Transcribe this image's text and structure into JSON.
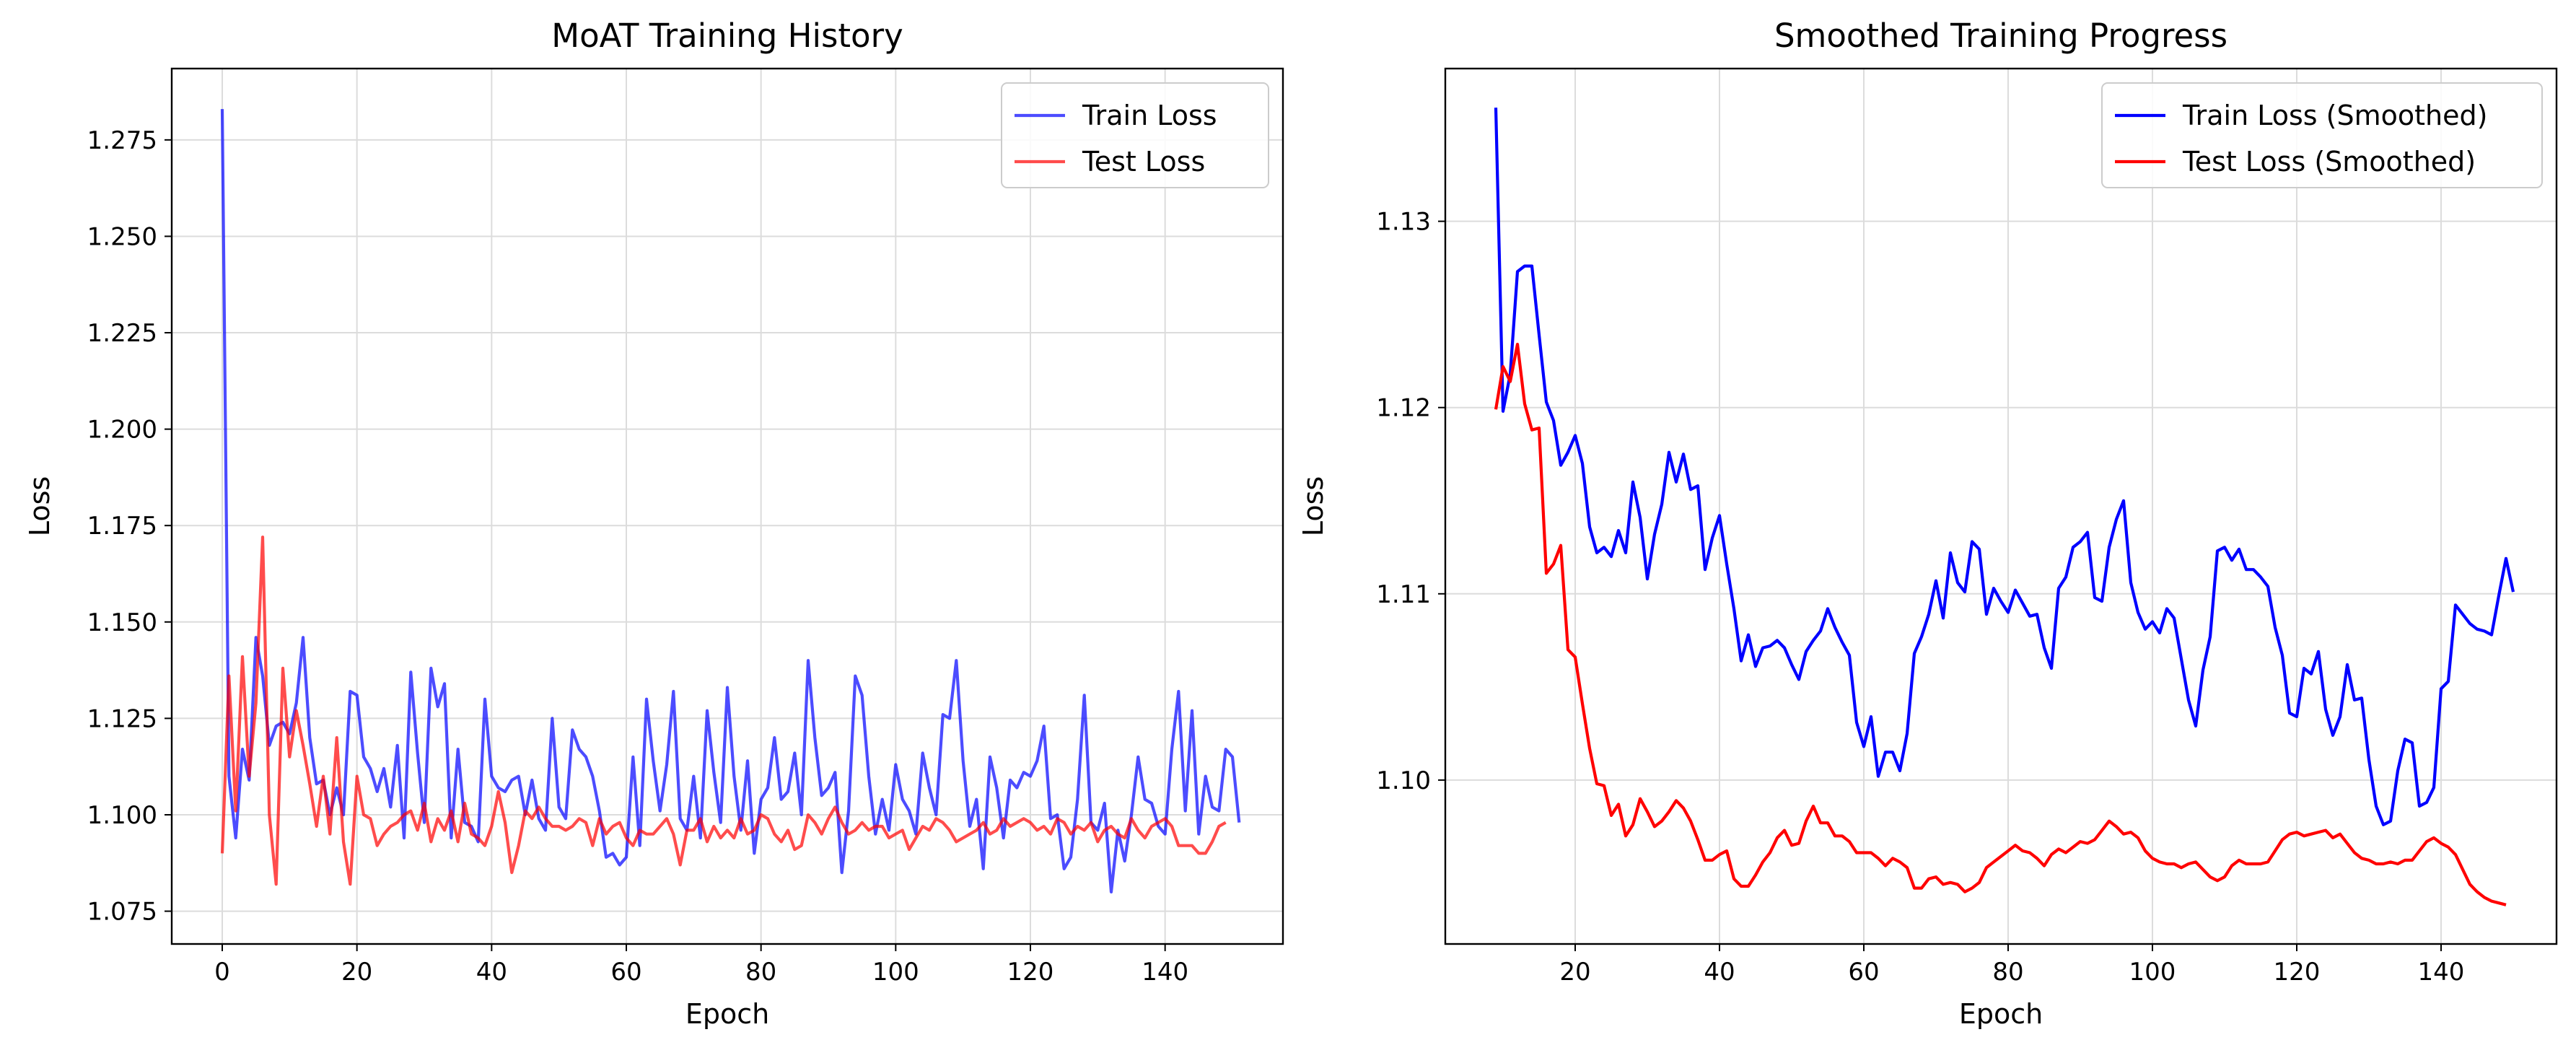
{
  "chart_data": [
    {
      "type": "line",
      "title": "MoAT Training History",
      "xlabel": "Epoch",
      "ylabel": "Loss",
      "xlim": [
        -7.5,
        157.5
      ],
      "ylim": [
        1.0665,
        1.2935
      ],
      "xticks": [
        0,
        20,
        40,
        60,
        80,
        100,
        120,
        140
      ],
      "yticks": [
        1.075,
        1.1,
        1.125,
        1.15,
        1.175,
        1.2,
        1.225,
        1.25,
        1.275
      ],
      "ytick_labels": [
        "1.075",
        "1.100",
        "1.125",
        "1.150",
        "1.175",
        "1.200",
        "1.225",
        "1.250",
        "1.275"
      ],
      "grid": true,
      "legend": "upper right",
      "series": [
        {
          "name": "Train Loss",
          "color": "#0000ff",
          "alpha": 0.7,
          "y": [
            1.283,
            1.11,
            1.094,
            1.117,
            1.109,
            1.146,
            1.136,
            1.118,
            1.123,
            1.124,
            1.121,
            1.129,
            1.146,
            1.12,
            1.108,
            1.109,
            1.1,
            1.107,
            1.1,
            1.132,
            1.131,
            1.115,
            1.112,
            1.106,
            1.112,
            1.102,
            1.118,
            1.094,
            1.137,
            1.116,
            1.098,
            1.138,
            1.128,
            1.134,
            1.094,
            1.117,
            1.098,
            1.097,
            1.093,
            1.13,
            1.11,
            1.107,
            1.106,
            1.109,
            1.11,
            1.1,
            1.109,
            1.099,
            1.096,
            1.125,
            1.102,
            1.099,
            1.122,
            1.117,
            1.115,
            1.11,
            1.101,
            1.089,
            1.09,
            1.087,
            1.089,
            1.115,
            1.092,
            1.13,
            1.114,
            1.101,
            1.113,
            1.132,
            1.099,
            1.096,
            1.11,
            1.094,
            1.127,
            1.111,
            1.098,
            1.133,
            1.11,
            1.096,
            1.114,
            1.09,
            1.104,
            1.107,
            1.12,
            1.104,
            1.106,
            1.116,
            1.1,
            1.14,
            1.12,
            1.105,
            1.107,
            1.111,
            1.085,
            1.101,
            1.136,
            1.131,
            1.11,
            1.095,
            1.104,
            1.096,
            1.113,
            1.104,
            1.101,
            1.095,
            1.116,
            1.107,
            1.1,
            1.126,
            1.125,
            1.14,
            1.114,
            1.097,
            1.104,
            1.086,
            1.115,
            1.107,
            1.094,
            1.109,
            1.107,
            1.111,
            1.11,
            1.114,
            1.123,
            1.099,
            1.1,
            1.086,
            1.089,
            1.104,
            1.131,
            1.098,
            1.096,
            1.103,
            1.08,
            1.096,
            1.088,
            1.1,
            1.115,
            1.104,
            1.103,
            1.097,
            1.095,
            1.117,
            1.132,
            1.101,
            1.127,
            1.095,
            1.11,
            1.102,
            1.101,
            1.117,
            1.115,
            1.098
          ]
        },
        {
          "name": "Test Loss",
          "color": "#ff0000",
          "alpha": 0.7,
          "y": [
            1.09,
            1.136,
            1.101,
            1.141,
            1.11,
            1.129,
            1.172,
            1.1,
            1.082,
            1.138,
            1.115,
            1.127,
            1.118,
            1.108,
            1.097,
            1.11,
            1.095,
            1.12,
            1.093,
            1.082,
            1.11,
            1.1,
            1.099,
            1.092,
            1.095,
            1.097,
            1.098,
            1.1,
            1.101,
            1.096,
            1.103,
            1.093,
            1.099,
            1.096,
            1.101,
            1.093,
            1.103,
            1.095,
            1.094,
            1.092,
            1.097,
            1.106,
            1.098,
            1.085,
            1.092,
            1.101,
            1.099,
            1.102,
            1.099,
            1.097,
            1.097,
            1.096,
            1.097,
            1.099,
            1.098,
            1.092,
            1.099,
            1.095,
            1.097,
            1.098,
            1.094,
            1.092,
            1.096,
            1.095,
            1.095,
            1.097,
            1.099,
            1.095,
            1.087,
            1.096,
            1.096,
            1.099,
            1.093,
            1.097,
            1.094,
            1.096,
            1.094,
            1.099,
            1.095,
            1.096,
            1.1,
            1.099,
            1.095,
            1.093,
            1.096,
            1.091,
            1.092,
            1.1,
            1.098,
            1.095,
            1.099,
            1.102,
            1.098,
            1.095,
            1.096,
            1.098,
            1.096,
            1.097,
            1.097,
            1.094,
            1.095,
            1.096,
            1.091,
            1.094,
            1.097,
            1.096,
            1.099,
            1.098,
            1.096,
            1.093,
            1.094,
            1.095,
            1.096,
            1.098,
            1.095,
            1.096,
            1.099,
            1.097,
            1.098,
            1.099,
            1.098,
            1.096,
            1.097,
            1.095,
            1.099,
            1.098,
            1.095,
            1.097,
            1.096,
            1.098,
            1.093,
            1.096,
            1.097,
            1.095,
            1.094,
            1.099,
            1.096,
            1.094,
            1.097,
            1.098,
            1.099,
            1.097,
            1.092,
            1.092,
            1.092,
            1.09,
            1.09,
            1.093,
            1.097,
            1.098
          ]
        }
      ]
    },
    {
      "type": "line",
      "title": "Smoothed Training Progress",
      "xlabel": "Epoch",
      "ylabel": "Loss",
      "xlim": [
        2,
        156
      ],
      "ylim": [
        1.0912,
        1.1382
      ],
      "xticks": [
        20,
        40,
        60,
        80,
        100,
        120,
        140
      ],
      "yticks": [
        1.1,
        1.11,
        1.12,
        1.13
      ],
      "ytick_labels": [
        "1.10",
        "1.11",
        "1.12",
        "1.13"
      ],
      "grid": true,
      "legend": "upper right",
      "series": [
        {
          "name": "Train Loss (Smoothed)",
          "color": "#0000ff",
          "x_start": 9,
          "y": [
            1.1361,
            1.1198,
            1.1218,
            1.1273,
            1.1276,
            1.1276,
            1.1239,
            1.1203,
            1.1193,
            1.1169,
            1.1176,
            1.1185,
            1.117,
            1.1136,
            1.1122,
            1.1125,
            1.112,
            1.1134,
            1.1122,
            1.116,
            1.1141,
            1.1108,
            1.1132,
            1.1148,
            1.1176,
            1.116,
            1.1175,
            1.1156,
            1.1158,
            1.1113,
            1.113,
            1.1142,
            1.1116,
            1.1092,
            1.1064,
            1.1078,
            1.1061,
            1.1071,
            1.1072,
            1.1075,
            1.1071,
            1.1062,
            1.1054,
            1.1069,
            1.1075,
            1.108,
            1.1092,
            1.1082,
            1.1074,
            1.1067,
            1.1031,
            1.1018,
            1.1034,
            1.1002,
            1.1015,
            1.1015,
            1.1005,
            1.1025,
            1.1068,
            1.1077,
            1.1089,
            1.1107,
            1.1087,
            1.1122,
            1.1106,
            1.1101,
            1.1128,
            1.1124,
            1.1089,
            1.1103,
            1.1096,
            1.109,
            1.1102,
            1.1095,
            1.1088,
            1.1089,
            1.1071,
            1.106,
            1.1103,
            1.1109,
            1.1125,
            1.1128,
            1.1133,
            1.1098,
            1.1096,
            1.1125,
            1.114,
            1.115,
            1.1106,
            1.109,
            1.1081,
            1.1085,
            1.1079,
            1.1092,
            1.1087,
            1.1065,
            1.1043,
            1.1029,
            1.1059,
            1.1077,
            1.1123,
            1.1125,
            1.1118,
            1.1124,
            1.1113,
            1.1113,
            1.1109,
            1.1104,
            1.1082,
            1.1067,
            1.1036,
            1.1034,
            1.106,
            1.1057,
            1.1069,
            1.1038,
            1.1024,
            1.1034,
            1.1062,
            1.1043,
            1.1044,
            1.1011,
            1.0986,
            1.0976,
            1.0978,
            1.1005,
            1.1022,
            1.102,
            1.0986,
            1.0988,
            1.0996,
            1.1049,
            1.1053,
            1.1094,
            1.1089,
            1.1084,
            1.1081,
            1.108,
            1.1078,
            1.1099,
            1.1119,
            1.1101
          ]
        },
        {
          "name": "Test Loss (Smoothed)",
          "color": "#ff0000",
          "x_start": 9,
          "y": [
            1.1199,
            1.1222,
            1.1214,
            1.1234,
            1.1202,
            1.1188,
            1.1189,
            1.1111,
            1.1116,
            1.1126,
            1.107,
            1.1066,
            1.1041,
            1.1017,
            1.0998,
            1.0997,
            1.0981,
            1.0987,
            1.097,
            1.0976,
            1.099,
            1.0983,
            1.0975,
            1.0978,
            1.0983,
            1.0989,
            1.0985,
            1.0978,
            1.0968,
            1.0957,
            1.0957,
            1.096,
            1.0962,
            1.0947,
            1.0943,
            1.0943,
            1.0949,
            1.0956,
            1.0961,
            1.0969,
            1.0973,
            1.0965,
            1.0966,
            1.0978,
            1.0986,
            1.0977,
            1.0977,
            1.097,
            1.097,
            1.0967,
            1.0961,
            1.0961,
            1.0961,
            1.0958,
            1.0954,
            1.0958,
            1.0956,
            1.0953,
            1.0942,
            1.0942,
            1.0947,
            1.0948,
            1.0944,
            1.0945,
            1.0944,
            1.094,
            1.0942,
            1.0945,
            1.0953,
            1.0956,
            1.0959,
            1.0962,
            1.0965,
            1.0962,
            1.0961,
            1.0958,
            1.0954,
            1.096,
            1.0963,
            1.0961,
            1.0964,
            1.0967,
            1.0966,
            1.0968,
            1.0973,
            1.0978,
            1.0975,
            1.0971,
            1.0972,
            1.0969,
            1.0962,
            1.0958,
            1.0956,
            1.0955,
            1.0955,
            1.0953,
            1.0955,
            1.0956,
            1.0952,
            1.0948,
            1.0946,
            1.0948,
            1.0954,
            1.0957,
            1.0955,
            1.0955,
            1.0955,
            1.0956,
            1.0962,
            1.0968,
            1.0971,
            1.0972,
            1.097,
            1.0971,
            1.0972,
            1.0973,
            1.0969,
            1.0971,
            1.0966,
            1.0961,
            1.0958,
            1.0957,
            1.0955,
            1.0955,
            1.0956,
            1.0955,
            1.0957,
            1.0957,
            1.0962,
            1.0967,
            1.0969,
            1.0966,
            1.0964,
            1.096,
            1.0952,
            1.0944,
            1.094,
            1.0937,
            1.0935,
            1.0934,
            1.0933
          ]
        }
      ]
    }
  ]
}
